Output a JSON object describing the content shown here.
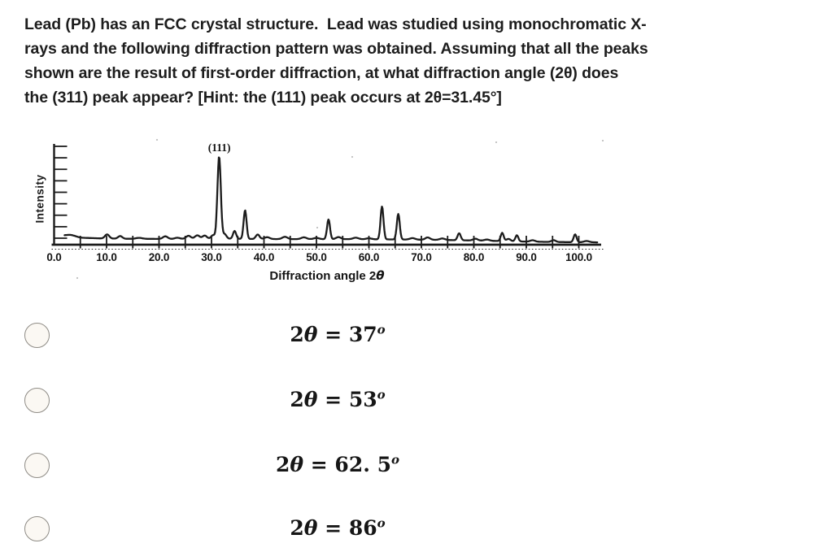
{
  "question": {
    "lines": [
      "Lead (Pb) has an FCC crystal structure.  Lead was studied using monochromatic X-",
      "rays and the following diffraction pattern was obtained. Assuming that all the peaks",
      "shown are the result of first-order diffraction, at what diffraction angle (2θ) does",
      "the (311) peak appear? [Hint: the (111) peak occurs at 2θ=31.45°]"
    ]
  },
  "chart_data": {
    "type": "line",
    "title": "",
    "xlabel": "Diffraction angle 2θ",
    "xlabel_parts": {
      "prefix": "Diffraction angle 2",
      "theta": "θ"
    },
    "ylabel": "Intensity",
    "x_ticks": [
      "0.0",
      "10.0",
      "20.0",
      "30.0",
      "40.0",
      "50.0",
      "60.0",
      "70.0",
      "80.0",
      "90.0",
      "100.0"
    ],
    "minor_tick_step": 5,
    "xlim": [
      0,
      104
    ],
    "y_axis_numeric_labels": false,
    "grid": false,
    "annotation": {
      "label": "(111)",
      "two_theta": 31.5
    },
    "major_peaks": [
      {
        "two_theta": 31.45,
        "rel_intensity": 1.0,
        "width": 0.32,
        "label": "(111)"
      },
      {
        "two_theta": 36.4,
        "rel_intensity": 0.35,
        "width": 0.28
      },
      {
        "two_theta": 52.3,
        "rel_intensity": 0.24,
        "width": 0.28
      },
      {
        "two_theta": 62.5,
        "rel_intensity": 0.4,
        "width": 0.28
      },
      {
        "two_theta": 65.6,
        "rel_intensity": 0.31,
        "width": 0.28
      },
      {
        "two_theta": 77.2,
        "rel_intensity": 0.085,
        "width": 0.3
      },
      {
        "two_theta": 85.4,
        "rel_intensity": 0.1,
        "width": 0.28
      },
      {
        "two_theta": 88.2,
        "rel_intensity": 0.075,
        "width": 0.28
      },
      {
        "two_theta": 99.3,
        "rel_intensity": 0.095,
        "width": 0.28
      }
    ],
    "noise_bumps": [
      [
        3.2,
        0.02,
        0.9
      ],
      [
        10.1,
        0.05,
        0.4
      ],
      [
        12.6,
        0.032,
        0.4
      ],
      [
        16.2,
        0.012,
        0.6
      ],
      [
        21.2,
        0.032,
        0.45
      ],
      [
        23.5,
        0.015,
        0.5
      ],
      [
        25.6,
        0.038,
        0.45
      ],
      [
        27.3,
        0.042,
        0.45
      ],
      [
        28.7,
        0.038,
        0.4
      ],
      [
        30.3,
        0.042,
        0.35
      ],
      [
        32.5,
        0.055,
        0.35
      ],
      [
        34.4,
        0.095,
        0.3
      ],
      [
        38.8,
        0.055,
        0.35
      ],
      [
        40.6,
        0.022,
        0.5
      ],
      [
        44.0,
        0.028,
        0.5
      ],
      [
        47.6,
        0.022,
        0.5
      ],
      [
        50.0,
        0.015,
        0.5
      ],
      [
        54.2,
        0.025,
        0.45
      ],
      [
        57.5,
        0.018,
        0.5
      ],
      [
        60.0,
        0.012,
        0.5
      ],
      [
        68.3,
        0.018,
        0.5
      ],
      [
        71.2,
        0.028,
        0.45
      ],
      [
        74.0,
        0.018,
        0.5
      ],
      [
        80.3,
        0.022,
        0.45
      ],
      [
        82.5,
        0.015,
        0.5
      ],
      [
        86.6,
        0.028,
        0.4
      ],
      [
        91.2,
        0.018,
        0.45
      ],
      [
        95.2,
        0.022,
        0.4
      ],
      [
        101.5,
        0.015,
        0.5
      ]
    ],
    "baseline": [
      [
        2,
        0.088
      ],
      [
        5,
        0.065
      ],
      [
        9,
        0.057
      ],
      [
        14,
        0.052
      ],
      [
        24,
        0.05
      ],
      [
        31,
        0.055
      ],
      [
        37,
        0.05
      ],
      [
        45,
        0.048
      ],
      [
        57,
        0.048
      ],
      [
        66,
        0.044
      ],
      [
        72,
        0.04
      ],
      [
        78,
        0.034
      ],
      [
        84,
        0.026
      ],
      [
        90,
        0.018
      ],
      [
        96,
        0.013
      ],
      [
        104,
        0.009
      ]
    ]
  },
  "options": [
    {
      "coef": "2",
      "symbol": "θ",
      "eq": " = ",
      "value": "37",
      "deg": "o"
    },
    {
      "coef": "2",
      "symbol": "θ",
      "eq": " = ",
      "value": "53",
      "deg": "o"
    },
    {
      "coef": "2",
      "symbol": "θ",
      "eq": " = ",
      "value": "62. 5",
      "deg": "o"
    },
    {
      "coef": "2",
      "symbol": "θ",
      "eq": " = ",
      "value": "86",
      "deg": "o"
    }
  ]
}
